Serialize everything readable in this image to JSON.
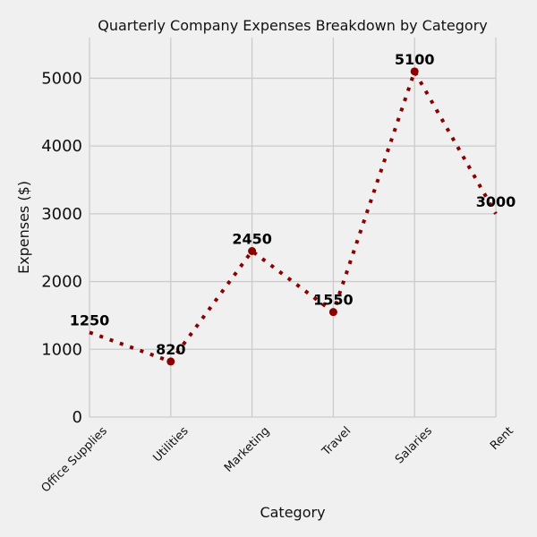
{
  "chart_data": {
    "type": "line",
    "title": "Quarterly Company Expenses Breakdown by Category",
    "xlabel": "Category",
    "ylabel": "Expenses ($)",
    "categories": [
      "Office Supplies",
      "Utilities",
      "Marketing",
      "Travel",
      "Salaries",
      "Rent"
    ],
    "values": [
      1250,
      820,
      2450,
      1550,
      5100,
      3000
    ],
    "data_labels": [
      "1250",
      "820",
      "2450",
      "1550",
      "5100",
      "3000"
    ],
    "yticks": [
      0,
      1000,
      2000,
      3000,
      4000,
      5000
    ],
    "ytick_labels": [
      "0",
      "1000",
      "2000",
      "3000",
      "4000",
      "5000"
    ],
    "ylim": [
      0,
      5600
    ],
    "grid": true,
    "line_style": "dotted",
    "marker": "circle",
    "colors": {
      "line": "#8b0000",
      "background": "#f0f0f0",
      "grid": "#cbcbcb"
    }
  }
}
